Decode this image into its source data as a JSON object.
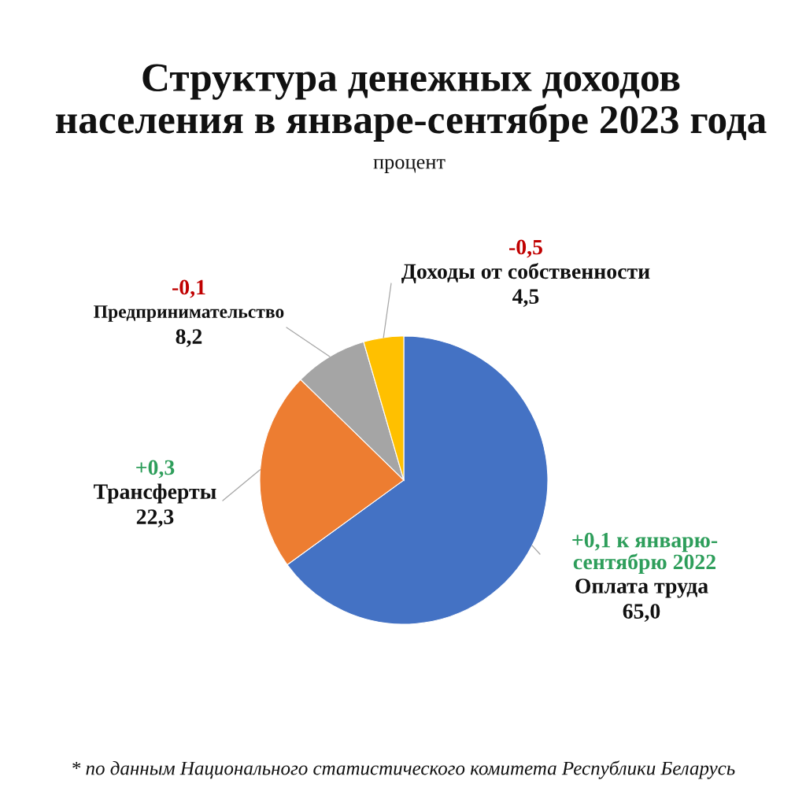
{
  "chart_data": {
    "type": "pie",
    "title": "Структура денежных доходов\nнаселения в январе-сентябре 2023 года",
    "subtitle": "процент",
    "categories": [
      "Оплата труда",
      "Трансферты",
      "Предпринимательство",
      "Доходы от собственности"
    ],
    "values": [
      65.0,
      22.3,
      8.2,
      4.5
    ],
    "colors": [
      "#4472c4",
      "#ed7d31",
      "#a5a5a5",
      "#ffc000"
    ],
    "value_labels": [
      "65,0",
      "22,3",
      "8,2",
      "4,5"
    ],
    "annotations": [
      "+0,1 к январю-\nсентябрю 2022",
      "+0,3",
      "-0,1",
      "-0,5",
      "* по данным Национального статистического комитета Республики Беларусь"
    ]
  }
}
